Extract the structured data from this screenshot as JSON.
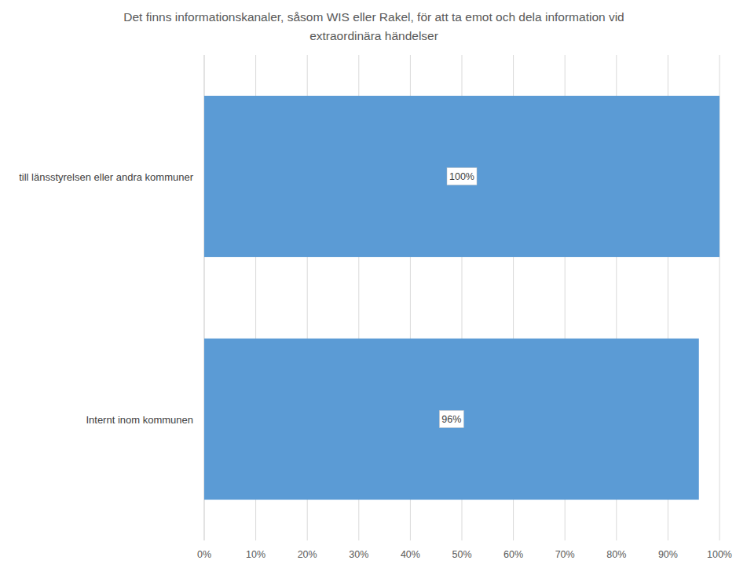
{
  "chart_data": {
    "type": "bar",
    "orientation": "horizontal",
    "title": "Det finns informationskanaler, såsom WIS eller Rakel, för att ta emot och dela information vid extraordinära händelser",
    "categories": [
      "till länsstyrelsen eller andra kommuner",
      "Internt inom kommunen"
    ],
    "values": [
      100,
      96
    ],
    "value_labels": [
      "100%",
      "96%"
    ],
    "data_labels": true,
    "color": "#5b9bd5",
    "xlim": [
      0,
      100
    ],
    "xticks": [
      {
        "value": 0,
        "label": "0%"
      },
      {
        "value": 10,
        "label": "10%"
      },
      {
        "value": 20,
        "label": "20%"
      },
      {
        "value": 30,
        "label": "30%"
      },
      {
        "value": 40,
        "label": "40%"
      },
      {
        "value": 50,
        "label": "50%"
      },
      {
        "value": 60,
        "label": "60%"
      },
      {
        "value": 70,
        "label": "70%"
      },
      {
        "value": 80,
        "label": "80%"
      },
      {
        "value": 90,
        "label": "90%"
      },
      {
        "value": 100,
        "label": "100%"
      }
    ],
    "grid": true
  }
}
